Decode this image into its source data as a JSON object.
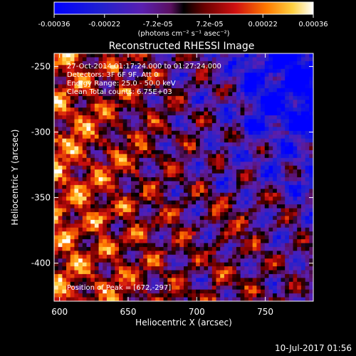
{
  "chart_data": {
    "type": "heatmap",
    "title": "Reconstructed RHESSI Image",
    "xlabel": "Heliocentric X (arcsec)",
    "ylabel": "Heliocentric Y (arcsec)",
    "xlim": [
      596,
      785
    ],
    "ylim": [
      -429,
      -240
    ],
    "x_ticks": [
      "600",
      "650",
      "700",
      "750"
    ],
    "x_tick_values": [
      600,
      650,
      700,
      750
    ],
    "y_ticks": [
      "-250",
      "-300",
      "-350",
      "-400"
    ],
    "y_tick_values": [
      -250,
      -300,
      -350,
      -400
    ],
    "colorbar": {
      "ticks": [
        "-0.00036",
        "-0.00022",
        "-7.2e-05",
        "7.2e-05",
        "0.00022",
        "0.00036"
      ],
      "tick_values": [
        -0.00036,
        -0.00022,
        -7.2e-05,
        7.2e-05,
        0.00022,
        0.00036
      ],
      "range": [
        -0.00036,
        0.00036
      ],
      "units_label": "(photons cm⁻² s⁻¹ asec⁻²)"
    },
    "annotations": [
      "27-Oct-2014 01:17:24.000 to 01:27:24.000",
      "Detectors: 3F 6F 9F, Att 0",
      "Energy Range: 25.0 - 50.0 keV",
      "Clean    Total counts: 6.75E+03"
    ],
    "peak_label": "Position of Peak = [672,-297]",
    "peak_position": [
      672,
      -297
    ],
    "grid": false
  },
  "timestamp": "10-Jul-2017 01:56"
}
